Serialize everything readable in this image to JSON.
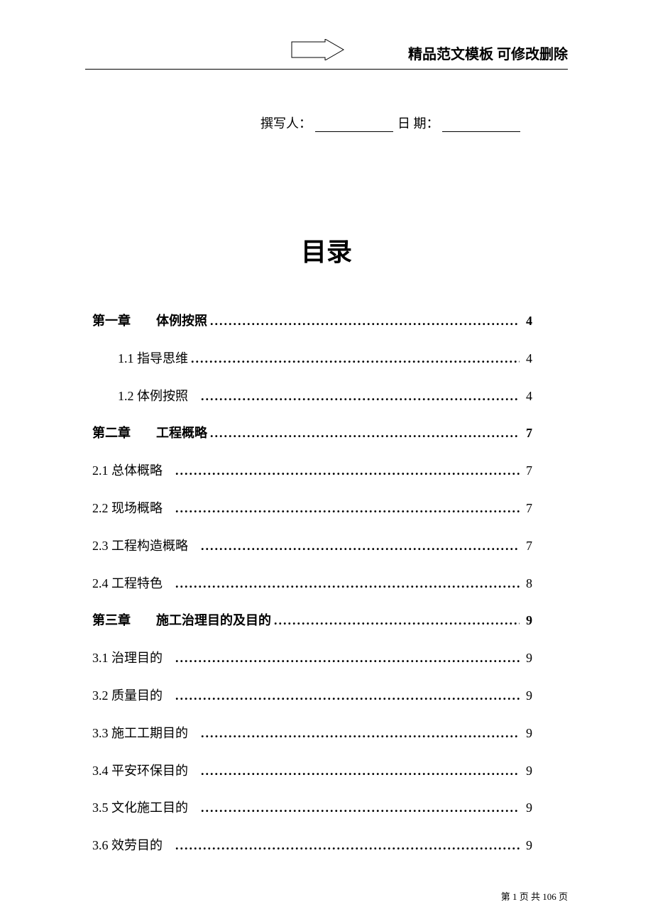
{
  "header": {
    "text": "精品范文模板  可修改删除"
  },
  "author_section": {
    "author_label": "撰写人：",
    "date_label": "日  期："
  },
  "toc": {
    "title": "目录",
    "entries": [
      {
        "type": "chapter",
        "label": "第一章　　体例按照",
        "page": "4",
        "indent": false
      },
      {
        "type": "section",
        "label": "1.1 指导思维",
        "page": "4",
        "indent": true
      },
      {
        "type": "section",
        "label": "1.2 体例按照",
        "page": "4",
        "indent": true,
        "spacer": true
      },
      {
        "type": "chapter",
        "label": "第二章　　工程概略",
        "page": "7",
        "indent": false
      },
      {
        "type": "section",
        "label": "2.1 总体概略",
        "page": "7",
        "indent": false,
        "spacer": true
      },
      {
        "type": "section",
        "label": "2.2 现场概略",
        "page": "7",
        "indent": false,
        "spacer": true
      },
      {
        "type": "section",
        "label": "2.3 工程构造概略",
        "page": "7",
        "indent": false,
        "spacer": true
      },
      {
        "type": "section",
        "label": "2.4 工程特色",
        "page": "8",
        "indent": false,
        "spacer": true
      },
      {
        "type": "chapter",
        "label": "第三章　　施工治理目的及目的",
        "page": "9",
        "indent": false
      },
      {
        "type": "section",
        "label": "3.1 治理目的",
        "page": "9",
        "indent": false,
        "spacer": true
      },
      {
        "type": "section",
        "label": "3.2 质量目的",
        "page": "9",
        "indent": false,
        "spacer": true
      },
      {
        "type": "section",
        "label": "3.3 施工工期目的",
        "page": "9",
        "indent": false,
        "spacer": true
      },
      {
        "type": "section",
        "label": "3.4 平安环保目的",
        "page": "9",
        "indent": false,
        "spacer": true
      },
      {
        "type": "section",
        "label": "3.5 文化施工目的",
        "page": "9",
        "indent": false,
        "spacer": true
      },
      {
        "type": "section",
        "label": "3.6 效劳目的",
        "page": "9",
        "indent": false,
        "spacer": true
      }
    ]
  },
  "footer": {
    "text": "第 1 页 共 106 页"
  },
  "colors": {
    "background": "#ffffff",
    "text": "#000000",
    "line": "#000000"
  }
}
